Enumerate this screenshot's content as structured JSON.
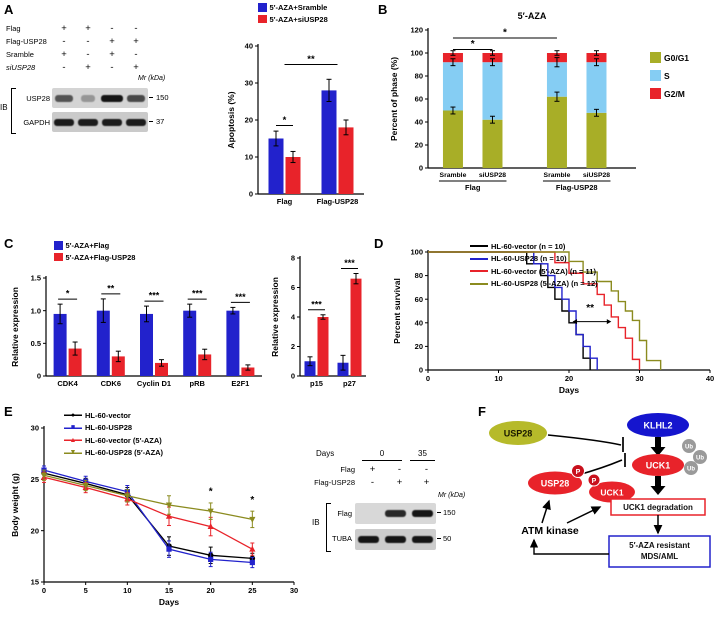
{
  "panel_labels": {
    "A": "A",
    "B": "B",
    "C": "C",
    "D": "D",
    "E": "E",
    "F": "F"
  },
  "panelA": {
    "conditions": {
      "rows": [
        {
          "label": "Flag",
          "values": [
            "+",
            "+",
            "-",
            "-"
          ]
        },
        {
          "label": "Flag-USP28",
          "values": [
            "-",
            "-",
            "+",
            "+"
          ]
        },
        {
          "label": "Sramble",
          "values": [
            "+",
            "-",
            "+",
            "-"
          ]
        },
        {
          "label": "siUSP28",
          "italic": true,
          "values": [
            "-",
            "+",
            "-",
            "+"
          ]
        }
      ],
      "mr_label": "Mr (kDa)"
    },
    "blot": {
      "ib_label": "IB",
      "rows": [
        {
          "target": "USP28",
          "mw": "150",
          "bands": [
            0.55,
            0.2,
            1,
            0.6
          ]
        },
        {
          "target": "GAPDH",
          "mw": "37",
          "bands": [
            0.85,
            0.85,
            0.85,
            0.85
          ]
        }
      ]
    }
  },
  "panelE_blot": {
    "days_label": "Days",
    "day_groups": [
      {
        "label": "0"
      },
      {
        "label": "35"
      }
    ],
    "rows": [
      {
        "label": "Flag",
        "values": [
          "+",
          "-",
          "-"
        ]
      },
      {
        "label": "Flag-USP28",
        "values": [
          "-",
          "+",
          "+"
        ]
      }
    ],
    "mr_label": "Mr (kDa)",
    "ib_label": "IB",
    "blots": [
      {
        "target": "Flag",
        "mw": "150",
        "bands": [
          0,
          0.78,
          0.95
        ]
      },
      {
        "target": "TUBA",
        "mw": "50",
        "bands": [
          0.9,
          0.9,
          0.9
        ]
      }
    ]
  },
  "panelF": {
    "usp28": "USP28",
    "klhl2": "KLHL2",
    "uck1": "UCK1",
    "ub": "Ub",
    "p": "P",
    "usp28_p": "USP28",
    "uck1_p": "UCK1",
    "atm": "ATM kinase",
    "deg_box": "UCK1 degradation",
    "mds_line1": "5′-AZA resistant",
    "mds_line2": "MDS/AML"
  },
  "chart_data": [
    {
      "id": "apoptosis",
      "type": "bar",
      "ylabel": "Apoptosis (%)",
      "ylim": [
        0,
        40
      ],
      "yticks": [
        0,
        10,
        20,
        30,
        40
      ],
      "categories": [
        "Flag",
        "Flag-USP28"
      ],
      "series": [
        {
          "name": "5′-AZA+Sramble",
          "color": "#2222CC",
          "values": [
            15,
            28
          ],
          "errors": [
            2,
            3
          ]
        },
        {
          "name": "5′-AZA+siUSP28",
          "color": "#E8232A",
          "values": [
            10,
            18
          ],
          "errors": [
            1.5,
            2
          ]
        }
      ],
      "significance": [
        {
          "g1": 0,
          "s1": 0,
          "g2": 0,
          "s2": 1,
          "y": 18.5,
          "label": "*"
        },
        {
          "g1": 0,
          "s1": null,
          "g2": 1,
          "s2": null,
          "y": 35,
          "label": "**"
        }
      ]
    },
    {
      "id": "cellcycle",
      "type": "stacked_bar",
      "title": "5′-AZA",
      "ylabel": "Percent of phase (%)",
      "ylim": [
        0,
        120
      ],
      "yticks": [
        0,
        20,
        40,
        60,
        80,
        100,
        120
      ],
      "categories": [
        "Sramble",
        "siUSP28",
        "Sramble",
        "siUSP28"
      ],
      "group_labels": [
        {
          "label": "Flag",
          "span": [
            0,
            1
          ]
        },
        {
          "label": "Flag-USP28",
          "span": [
            2,
            3
          ]
        }
      ],
      "series": [
        {
          "name": "G0/G1",
          "color": "#A8AE27",
          "values": [
            50,
            42,
            62,
            48
          ],
          "errors": [
            3,
            3,
            4,
            3
          ]
        },
        {
          "name": "S",
          "color": "#85CDF3",
          "values": [
            42,
            50,
            30,
            44
          ],
          "errors": [
            3,
            3,
            4,
            3
          ]
        },
        {
          "name": "G2/M",
          "color": "#E8232A",
          "values": [
            8,
            8,
            8,
            8
          ],
          "errors": [
            2,
            2,
            2,
            2
          ]
        }
      ],
      "legend_position": "right",
      "significance": [
        {
          "c1": 0,
          "c2": 2,
          "y": 113,
          "label": "*"
        },
        {
          "c1": 0,
          "c2": 1,
          "y": 103,
          "label": "*"
        }
      ]
    },
    {
      "id": "expression1",
      "type": "bar",
      "ylabel": "Relative expression",
      "ylim": [
        0,
        1.5
      ],
      "yticks": [
        0,
        0.5,
        1,
        1.5
      ],
      "ytick_labels": [
        "0",
        "0.5",
        "1.0",
        "1.5"
      ],
      "categories": [
        "CDK4",
        "CDK6",
        "Cyclin D1",
        "pRB",
        "E2F1"
      ],
      "series": [
        {
          "name": "5′-AZA+Flag",
          "color": "#2222CC",
          "values": [
            0.95,
            1.0,
            0.95,
            1.0,
            1.0
          ],
          "errors": [
            0.15,
            0.18,
            0.12,
            0.1,
            0.05
          ]
        },
        {
          "name": "5′-AZA+Flag-USP28",
          "color": "#E8232A",
          "values": [
            0.42,
            0.3,
            0.2,
            0.33,
            0.13
          ],
          "errors": [
            0.1,
            0.08,
            0.05,
            0.08,
            0.04
          ]
        }
      ],
      "sig_per_category": [
        "*",
        "**",
        "***",
        "***",
        "***"
      ]
    },
    {
      "id": "expression2",
      "type": "bar",
      "ylabel": "Relative expression",
      "ylim": [
        0,
        8
      ],
      "yticks": [
        0,
        2,
        4,
        6,
        8
      ],
      "categories": [
        "p15",
        "p27"
      ],
      "series": [
        {
          "name": "5′-AZA+Flag",
          "color": "#2222CC",
          "values": [
            1.0,
            0.9
          ],
          "errors": [
            0.3,
            0.5
          ]
        },
        {
          "name": "5′-AZA+Flag-USP28",
          "color": "#E8232A",
          "values": [
            4.0,
            6.6
          ],
          "errors": [
            0.15,
            0.35
          ]
        }
      ],
      "sig_per_category": [
        "***",
        "***"
      ]
    },
    {
      "id": "survival",
      "type": "step",
      "ylabel": "Percent survival",
      "xlabel": "Days",
      "xlim": [
        0,
        40
      ],
      "ylim": [
        0,
        100
      ],
      "xticks": [
        0,
        10,
        20,
        30,
        40
      ],
      "yticks": [
        0,
        20,
        40,
        60,
        80,
        100
      ],
      "series": [
        {
          "name": "HL-60-vector (n = 10)",
          "color": "#000000",
          "x": [
            0,
            14,
            16,
            17,
            18,
            19,
            20,
            21,
            22,
            23
          ],
          "y": [
            100,
            90,
            80,
            70,
            60,
            50,
            40,
            30,
            10,
            0
          ]
        },
        {
          "name": "HL-60-USP28 (n = 10)",
          "color": "#2222CC",
          "x": [
            0,
            15,
            17,
            18,
            19,
            20,
            21,
            22,
            23,
            24
          ],
          "y": [
            100,
            90,
            80,
            70,
            60,
            50,
            30,
            20,
            10,
            0
          ]
        },
        {
          "name": "HL-60-vector (5′-AZA) (n = 11)",
          "color": "#E8232A",
          "x": [
            0,
            18,
            20,
            22,
            24,
            25,
            26,
            27,
            28,
            29,
            30
          ],
          "y": [
            100,
            91,
            82,
            73,
            64,
            55,
            45,
            36,
            27,
            9,
            0
          ]
        },
        {
          "name": "HL-60-USP28 (5′-AZA) (n = 12)",
          "color": "#8B8B1F",
          "x": [
            0,
            20,
            22,
            24,
            26,
            27,
            28,
            29,
            30,
            31,
            33
          ],
          "y": [
            100,
            92,
            83,
            75,
            67,
            58,
            50,
            42,
            25,
            8,
            0
          ]
        }
      ],
      "annotations": [
        {
          "type": "text",
          "x": 23,
          "y": 50,
          "label": "**"
        },
        {
          "type": "dblarrow",
          "x1": 20.5,
          "x2": 26,
          "y": 41
        }
      ]
    },
    {
      "id": "bodyweight",
      "type": "line",
      "ylabel": "Body weight (g)",
      "xlabel": "Days",
      "xlim": [
        0,
        30
      ],
      "ylim": [
        15,
        30
      ],
      "xticks": [
        0,
        5,
        10,
        15,
        20,
        25,
        30
      ],
      "yticks": [
        15,
        20,
        25,
        30
      ],
      "x": [
        0,
        5,
        10,
        15,
        20,
        25
      ],
      "series": [
        {
          "name": "HL-60-vector",
          "color": "#000000",
          "marker": "circle",
          "values": [
            25.6,
            24.6,
            23.5,
            18.5,
            17.6,
            17.3
          ],
          "errors": [
            0.5,
            0.5,
            0.7,
            0.9,
            0.8,
            0.5
          ]
        },
        {
          "name": "HL-60-USP28",
          "color": "#2222CC",
          "marker": "square",
          "values": [
            25.9,
            24.8,
            23.8,
            18.2,
            17.2,
            16.9
          ],
          "errors": [
            0.4,
            0.5,
            0.6,
            0.8,
            0.7,
            0.5
          ]
        },
        {
          "name": "HL-60-vector (5′-AZA)",
          "color": "#E8232A",
          "marker": "triangle",
          "values": [
            25.2,
            24.2,
            23.1,
            21.4,
            20.4,
            18.2
          ],
          "errors": [
            0.5,
            0.5,
            0.6,
            0.9,
            0.9,
            0.6
          ]
        },
        {
          "name": "HL-60-USP28 (5′-AZA)",
          "color": "#8B8B1F",
          "marker": "triangle-down",
          "values": [
            25.4,
            24.4,
            23.4,
            22.5,
            21.9,
            21.1
          ],
          "errors": [
            0.5,
            0.5,
            0.6,
            0.9,
            0.8,
            0.8
          ]
        }
      ],
      "annotations": [
        {
          "type": "text",
          "x": 20,
          "y": 23.5,
          "label": "*"
        },
        {
          "type": "text",
          "x": 25,
          "y": 22.7,
          "label": "*"
        }
      ]
    }
  ]
}
